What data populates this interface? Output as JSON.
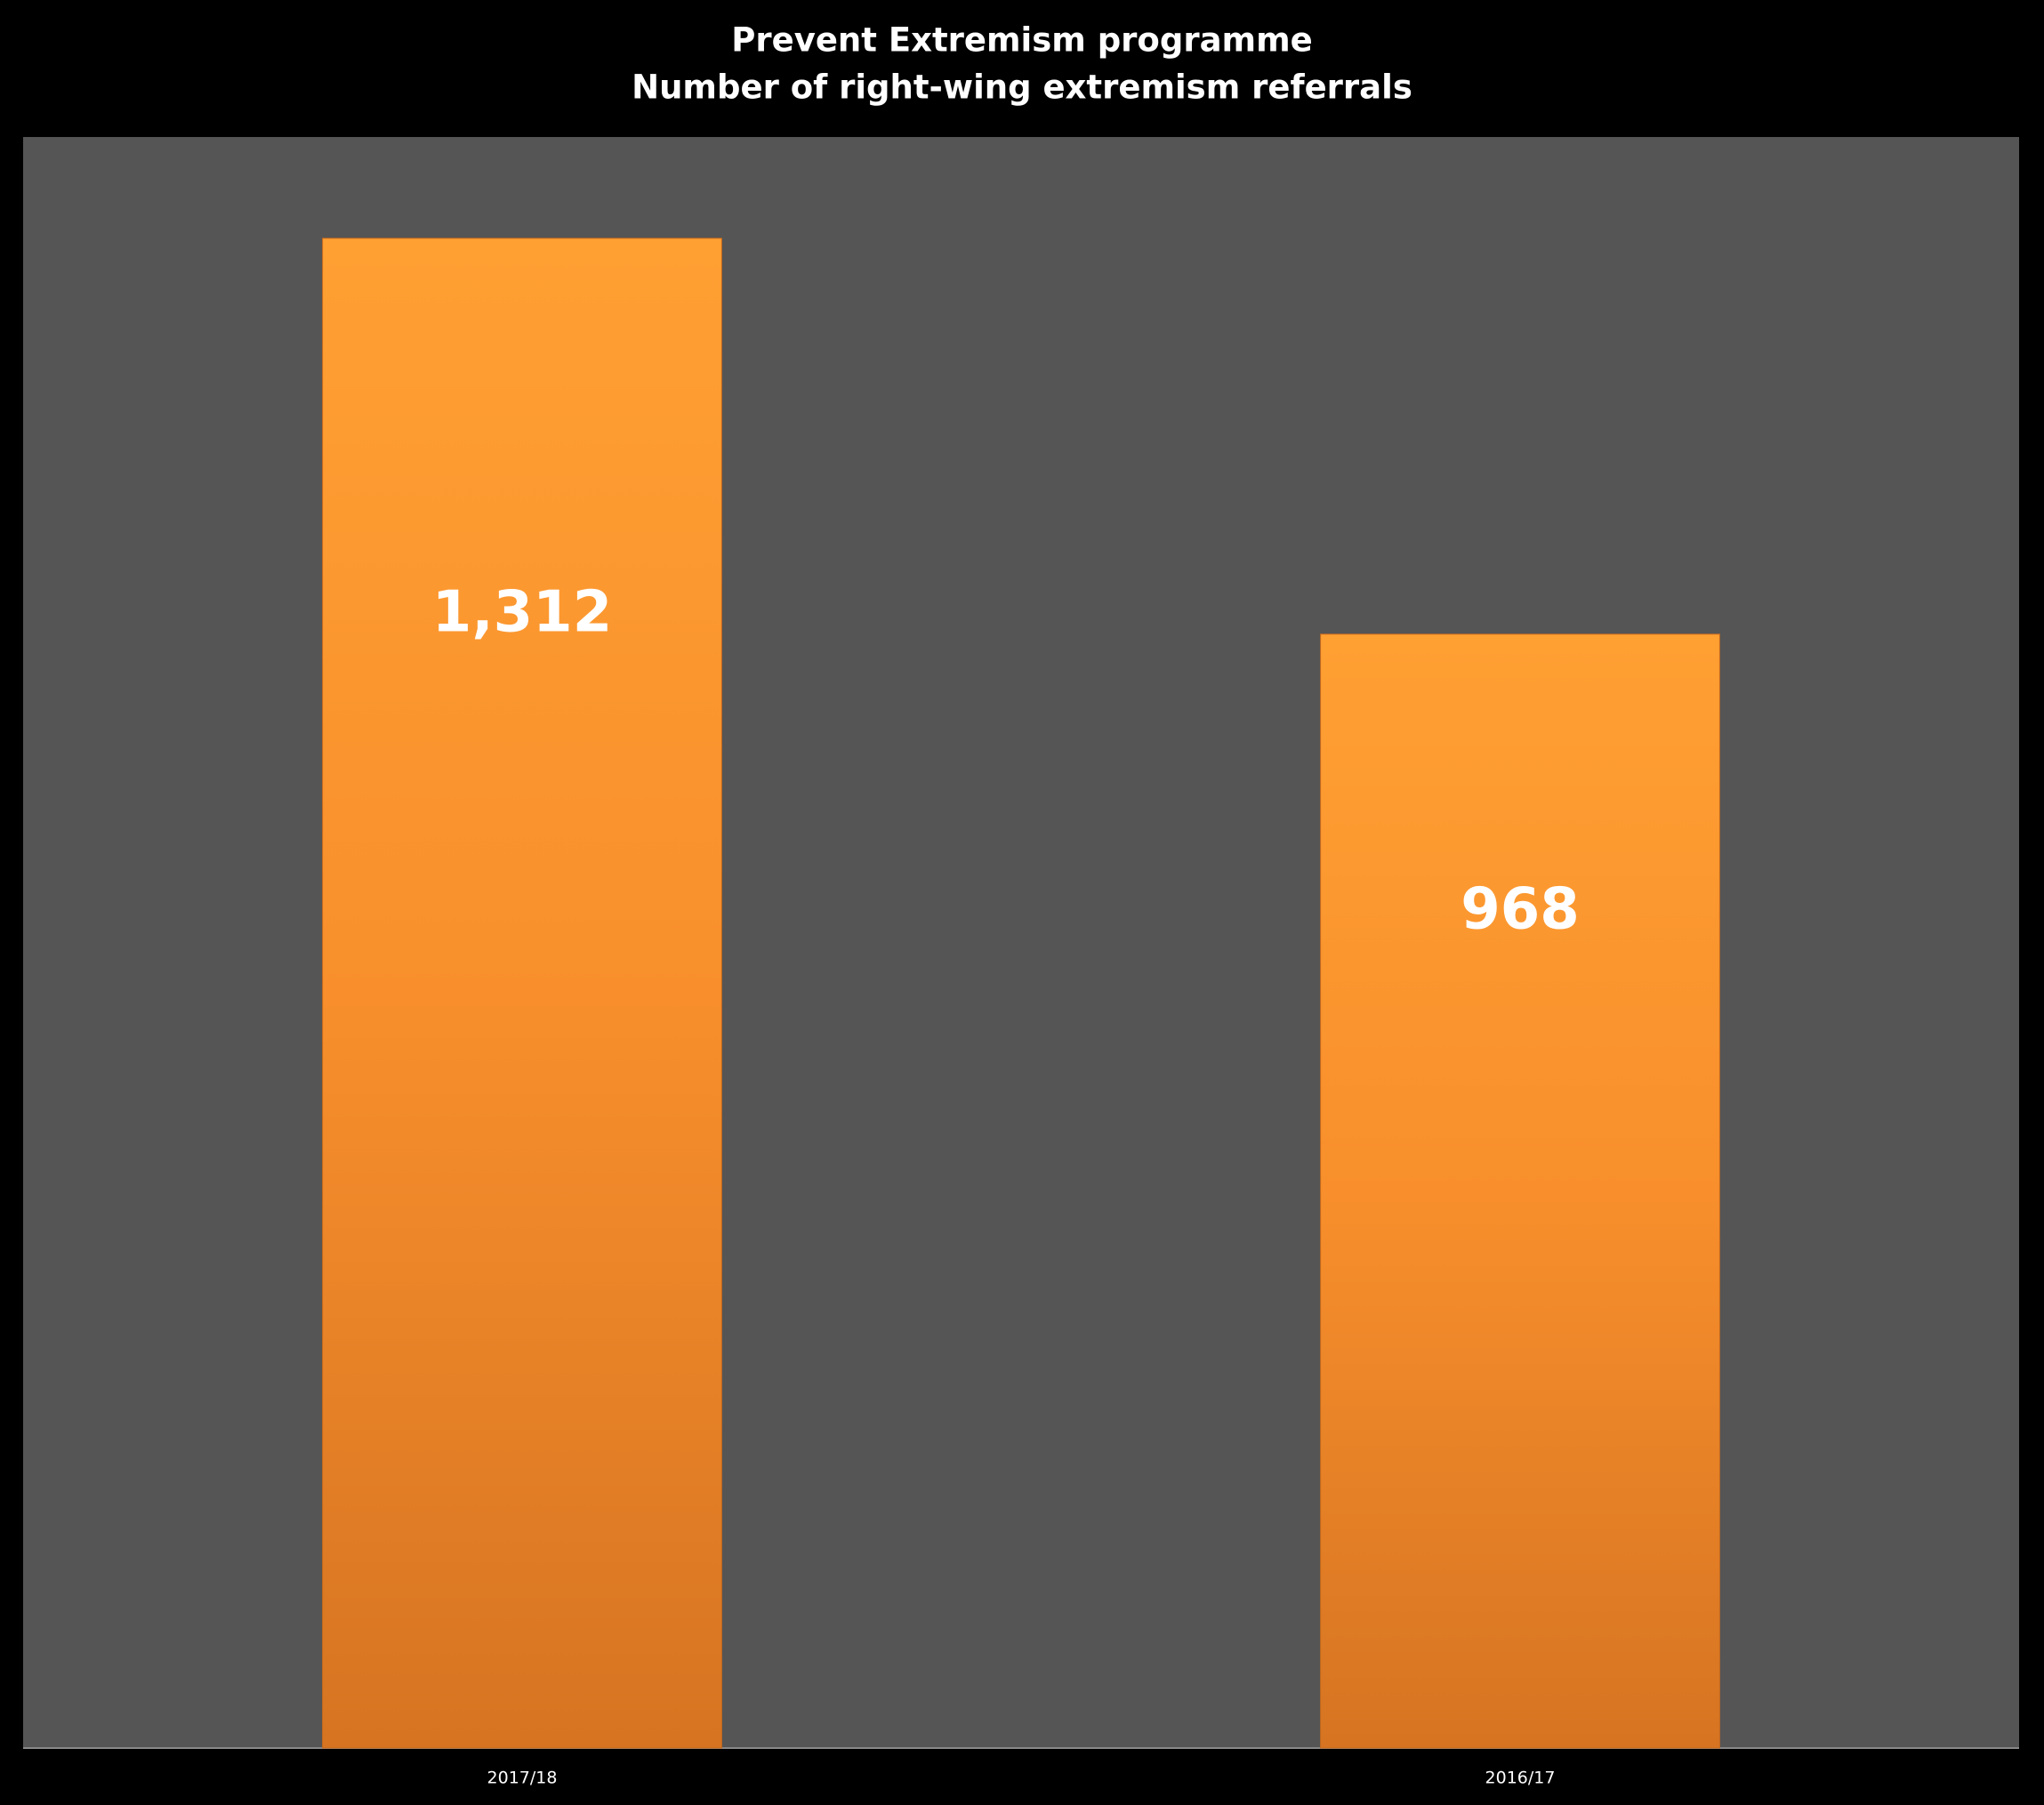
{
  "chart_data": {
    "type": "bar",
    "title": "Prevent Extremism programme",
    "subtitle": "Number of right-wing extremism referrals",
    "categories": [
      "2017/18",
      "2016/17"
    ],
    "values": [
      1312,
      968
    ],
    "value_labels": [
      "1,312",
      "968"
    ],
    "color": "#f7922e",
    "ylim": [
      0,
      1400
    ],
    "grid": false
  }
}
